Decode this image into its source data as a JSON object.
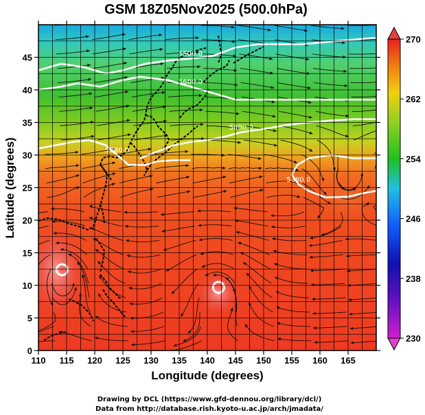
{
  "chart_data": {
    "type": "heatmap",
    "title": "GSM 18Z05Nov2025 (500.0hPa)",
    "xlabel": "Longitude (degrees)",
    "ylabel": "Latitude (degrees)",
    "xlim": [
      110,
      170
    ],
    "ylim": [
      0,
      50
    ],
    "x_ticks": [
      110,
      115,
      120,
      125,
      130,
      135,
      140,
      145,
      150,
      155,
      160,
      165
    ],
    "y_ticks": [
      0,
      5,
      10,
      15,
      20,
      25,
      30,
      35,
      40,
      45
    ],
    "colorbar": {
      "min": 230,
      "max": 270,
      "ticks": [
        230,
        238,
        246,
        254,
        262,
        270
      ],
      "colors": [
        "#d020d0",
        "#1010b0",
        "#1060ff",
        "#20c0e0",
        "#20c020",
        "#90d020",
        "#f0d010",
        "#f08010",
        "#e82020"
      ]
    },
    "contours": {
      "variable": "geopotential height",
      "levels": [
        {
          "label": "5500.0",
          "points": [
            [
              110,
              43
            ],
            [
              114,
              44
            ],
            [
              118,
              43.5
            ],
            [
              122,
              42.5
            ],
            [
              125,
              43
            ],
            [
              129,
              44
            ],
            [
              133,
              44.5
            ],
            [
              137,
              44.8
            ],
            [
              141,
              45.2
            ],
            [
              145,
              46.5
            ],
            [
              149,
              47
            ],
            [
              153,
              47
            ],
            [
              157,
              47
            ],
            [
              163,
              47.5
            ],
            [
              170,
              48
            ]
          ]
        },
        {
          "label": "5600.0",
          "points": [
            [
              110,
              40
            ],
            [
              114,
              40.5
            ],
            [
              117,
              41
            ],
            [
              121,
              40.5
            ],
            [
              125,
              41.5
            ],
            [
              128,
              42
            ],
            [
              133,
              41.5
            ],
            [
              137,
              40.5
            ],
            [
              141,
              39.5
            ],
            [
              145,
              38.5
            ],
            [
              149,
              38.5
            ],
            [
              154,
              38.5
            ],
            [
              159,
              38.5
            ],
            [
              163,
              38.5
            ],
            [
              170,
              38.5
            ]
          ]
        },
        {
          "label": "5800.0",
          "points": [
            [
              128,
              29.5
            ],
            [
              131,
              30.5
            ],
            [
              134,
              31.5
            ],
            [
              137,
              32
            ],
            [
              140,
              32.3
            ],
            [
              143,
              32.8
            ],
            [
              146,
              33.5
            ],
            [
              150,
              34
            ],
            [
              154,
              34.6
            ],
            [
              158,
              35
            ],
            [
              162,
              35.3
            ],
            [
              166,
              35.5
            ],
            [
              170,
              35.5
            ]
          ]
        },
        {
          "label": "5880.0",
          "points": [
            [
              110,
              31
            ],
            [
              113,
              31.5
            ],
            [
              116,
              32
            ],
            [
              119,
              32.3
            ],
            [
              122,
              31.5
            ],
            [
              124,
              30
            ],
            [
              126,
              28.5
            ],
            [
              129,
              28.5
            ],
            [
              131,
              29
            ],
            [
              134,
              29.2
            ],
            [
              137,
              29.2
            ]
          ]
        },
        {
          "label": "5880.0",
          "points": [
            [
              170,
              29.5
            ],
            [
              166,
              29.5
            ],
            [
              162,
              30
            ],
            [
              158,
              29.5
            ],
            [
              156,
              28.5
            ],
            [
              155,
              27
            ],
            [
              156.2,
              25.5
            ],
            [
              158,
              24.5
            ],
            [
              161,
              23.5
            ],
            [
              165,
              23.6
            ],
            [
              168,
              24.2
            ],
            [
              170,
              24.5
            ]
          ]
        }
      ]
    },
    "centers": [
      {
        "name": "closed low",
        "lon": 114.2,
        "lat": 12.4
      },
      {
        "name": "closed low",
        "lon": 142.0,
        "lat": 9.7
      }
    ],
    "credits": {
      "line1": "Drawing by DCL (https://www.gfd-dennou.org/library/dcl/)",
      "line2": "Data from http://database.rish.kyoto-u.ac.jp/arch/jmadata/"
    }
  }
}
